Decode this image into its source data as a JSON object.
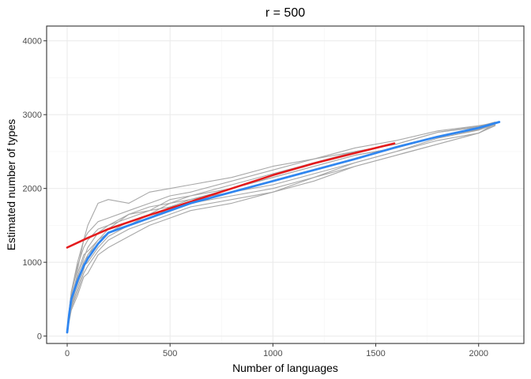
{
  "chart_data": {
    "type": "line",
    "title": "r = 500",
    "xlabel": "Number of languages",
    "ylabel": "Estimated number of types",
    "xlim": [
      -100,
      2220
    ],
    "ylim": [
      -100,
      4200
    ],
    "x_ticks": [
      0,
      500,
      1000,
      1500,
      2000
    ],
    "y_ticks": [
      0,
      1000,
      2000,
      3000,
      4000
    ],
    "x_tick_labels": [
      "0",
      "500",
      "1000",
      "1500",
      "2000"
    ],
    "y_tick_labels": [
      "0",
      "1000",
      "2000",
      "3000",
      "4000"
    ],
    "grid": true,
    "colors": {
      "samples": "#a8a8a8",
      "fit": "#e41a1c",
      "mean": "#2f86f0",
      "panel_border": "#333333",
      "grid_major": "#ebebeb",
      "grid_minor": "#f5f5f5"
    },
    "series": [
      {
        "role": "sample",
        "x": [
          0,
          20,
          50,
          80,
          100,
          150,
          200,
          300,
          400,
          500,
          600,
          800,
          1000,
          1200,
          1400,
          1600,
          1800,
          2000,
          2080
        ],
        "y": [
          100,
          600,
          900,
          1300,
          1500,
          1800,
          1850,
          1800,
          1950,
          2000,
          2050,
          2150,
          2300,
          2400,
          2500,
          2600,
          2760,
          2830,
          2870
        ]
      },
      {
        "role": "sample",
        "x": [
          0,
          20,
          50,
          80,
          100,
          150,
          200,
          300,
          400,
          500,
          600,
          800,
          1000,
          1200,
          1400,
          1600,
          1800,
          2000,
          2080
        ],
        "y": [
          60,
          350,
          550,
          800,
          850,
          1100,
          1200,
          1350,
          1500,
          1600,
          1700,
          1800,
          1950,
          2150,
          2350,
          2500,
          2650,
          2750,
          2880
        ]
      },
      {
        "role": "sample",
        "x": [
          0,
          20,
          50,
          80,
          100,
          150,
          200,
          300,
          400,
          500,
          600,
          800,
          1000,
          1200,
          1400,
          1600,
          1800,
          2000,
          2080
        ],
        "y": [
          80,
          500,
          850,
          1100,
          1150,
          1300,
          1450,
          1650,
          1700,
          1750,
          1850,
          2000,
          2150,
          2300,
          2450,
          2550,
          2700,
          2820,
          2870
        ]
      },
      {
        "role": "sample",
        "x": [
          0,
          20,
          50,
          80,
          100,
          150,
          200,
          300,
          400,
          500,
          600,
          800,
          1000,
          1200,
          1400,
          1600,
          1800,
          2000,
          2080
        ],
        "y": [
          70,
          450,
          700,
          950,
          1000,
          1200,
          1350,
          1500,
          1600,
          1750,
          1800,
          1900,
          2000,
          2150,
          2300,
          2450,
          2600,
          2750,
          2850
        ]
      },
      {
        "role": "sample",
        "x": [
          0,
          20,
          50,
          80,
          100,
          150,
          200,
          300,
          400,
          500,
          600,
          800,
          1000,
          1200,
          1400,
          1600,
          1800,
          2000,
          2080
        ],
        "y": [
          90,
          550,
          950,
          1200,
          1300,
          1450,
          1500,
          1600,
          1700,
          1850,
          1900,
          2050,
          2200,
          2350,
          2500,
          2600,
          2760,
          2840,
          2900
        ]
      },
      {
        "role": "sample",
        "x": [
          0,
          20,
          50,
          80,
          100,
          150,
          200,
          300,
          400,
          500,
          600,
          800,
          1000,
          1200,
          1400,
          1600,
          1800,
          2000,
          2080
        ],
        "y": [
          75,
          400,
          650,
          900,
          1100,
          1300,
          1400,
          1550,
          1650,
          1800,
          1850,
          1950,
          2100,
          2250,
          2400,
          2550,
          2700,
          2800,
          2880
        ]
      },
      {
        "role": "sample",
        "x": [
          0,
          20,
          50,
          80,
          100,
          150,
          200,
          300,
          400,
          500,
          600,
          800,
          1000,
          1200,
          1400,
          1600,
          1800,
          2000,
          2080
        ],
        "y": [
          85,
          500,
          800,
          1050,
          1200,
          1400,
          1500,
          1650,
          1750,
          1800,
          1900,
          2000,
          2150,
          2300,
          2450,
          2550,
          2700,
          2800,
          2870
        ]
      },
      {
        "role": "sample",
        "x": [
          0,
          20,
          50,
          80,
          100,
          150,
          200,
          300,
          400,
          500,
          600,
          800,
          1000,
          1200,
          1400,
          1600,
          1800,
          2000,
          2080
        ],
        "y": [
          65,
          380,
          600,
          850,
          950,
          1150,
          1300,
          1450,
          1550,
          1650,
          1750,
          1850,
          1950,
          2100,
          2300,
          2450,
          2600,
          2750,
          2860
        ]
      },
      {
        "role": "sample",
        "x": [
          0,
          20,
          50,
          80,
          100,
          150,
          200,
          300,
          400,
          500,
          600,
          800,
          1000,
          1200,
          1400,
          1600,
          1800,
          2000,
          2080
        ],
        "y": [
          95,
          600,
          1000,
          1300,
          1400,
          1550,
          1600,
          1700,
          1800,
          1900,
          1950,
          2100,
          2250,
          2400,
          2550,
          2650,
          2780,
          2850,
          2890
        ]
      },
      {
        "role": "sample",
        "x": [
          0,
          20,
          50,
          80,
          100,
          150,
          200,
          300,
          400,
          500,
          600,
          800,
          1000,
          1200,
          1400,
          1600,
          1800,
          2000,
          2080
        ],
        "y": [
          70,
          420,
          720,
          1000,
          1100,
          1250,
          1400,
          1500,
          1650,
          1700,
          1800,
          1950,
          2050,
          2200,
          2350,
          2500,
          2680,
          2790,
          2870
        ]
      },
      {
        "role": "fit",
        "x": [
          0,
          100,
          200,
          400,
          600,
          800,
          1000,
          1200,
          1400,
          1590
        ],
        "y": [
          1200,
          1330,
          1450,
          1640,
          1820,
          2000,
          2180,
          2340,
          2480,
          2610
        ]
      },
      {
        "role": "mean",
        "x": [
          0,
          10,
          20,
          50,
          80,
          100,
          150,
          200,
          300,
          400,
          500,
          600,
          800,
          1000,
          1200,
          1400,
          1600,
          1800,
          2000,
          2100
        ],
        "y": [
          50,
          300,
          500,
          750,
          950,
          1050,
          1250,
          1400,
          1500,
          1600,
          1700,
          1800,
          1950,
          2100,
          2250,
          2400,
          2560,
          2700,
          2820,
          2900
        ]
      }
    ]
  }
}
